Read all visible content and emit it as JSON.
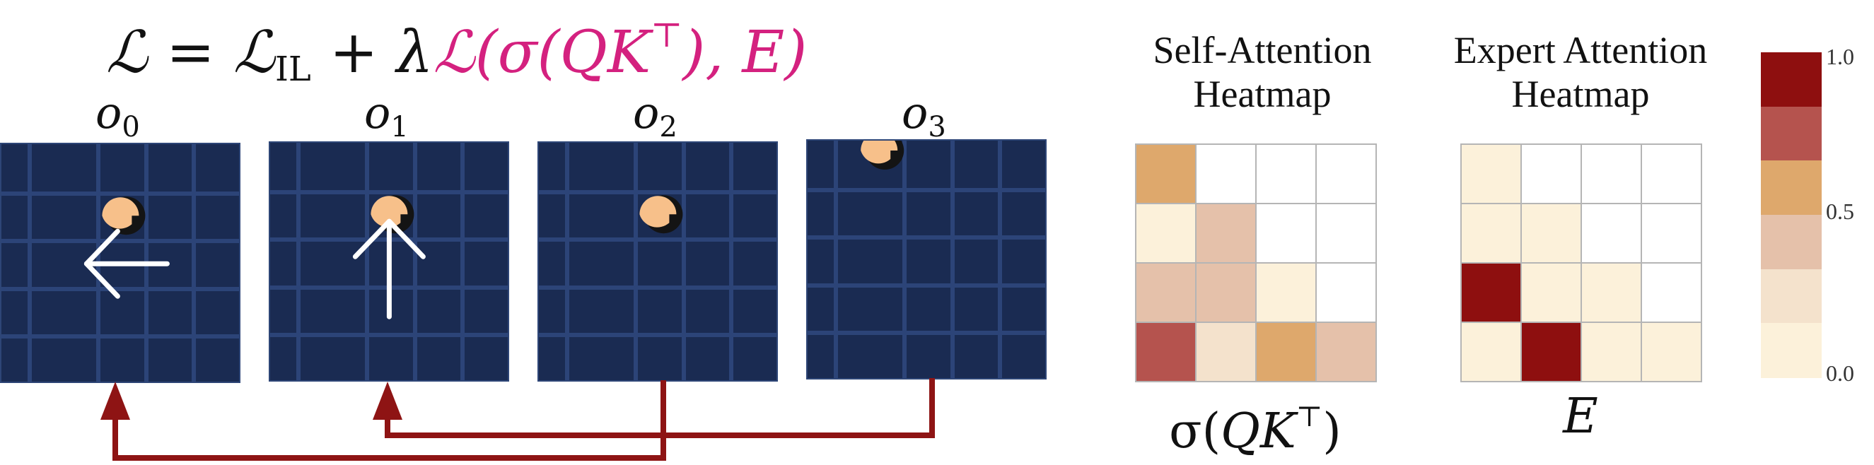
{
  "equation": {
    "lhs": "ℒ",
    "eq": " = ",
    "term1": "ℒ",
    "term1_sub": "IL",
    "plus": " + ",
    "lambda": "λ",
    "loss": "ℒ(σ(QK",
    "loss_sup": "⊤",
    "loss_end": "), E)"
  },
  "observations": [
    {
      "label": "o",
      "sub": "0",
      "agent_cell": [
        2,
        1
      ],
      "arrow": "left"
    },
    {
      "label": "o",
      "sub": "1",
      "agent_cell": [
        2,
        1
      ],
      "arrow": "up"
    },
    {
      "label": "o",
      "sub": "2",
      "agent_cell": [
        2,
        1
      ],
      "arrow": "none"
    },
    {
      "label": "o",
      "sub": "3",
      "agent_cell": [
        1,
        0
      ],
      "arrow": "none"
    }
  ],
  "heatmaps": [
    {
      "title_line1": "Self-Attention",
      "title_line2": "Heatmap",
      "caption_prefix": "σ(",
      "caption_ital": "QK",
      "caption_sup": "⊤",
      "caption_suffix": ")",
      "matrix": [
        [
          0.55,
          0.0,
          0.0,
          0.0
        ],
        [
          0.05,
          0.35,
          0.0,
          0.0
        ],
        [
          0.35,
          0.35,
          0.05,
          0.0
        ],
        [
          0.75,
          0.2,
          0.55,
          0.35
        ]
      ]
    },
    {
      "title_line1": "Expert Attention",
      "title_line2": "Heatmap",
      "caption_ital": "E",
      "matrix": [
        [
          0.05,
          0.0,
          0.0,
          0.0
        ],
        [
          0.05,
          0.05,
          0.0,
          0.0
        ],
        [
          1.0,
          0.05,
          0.05,
          0.0
        ],
        [
          0.05,
          1.0,
          0.05,
          0.05
        ]
      ]
    }
  ],
  "colorbar": {
    "ticks": [
      "1.0",
      "0.5",
      "0.0"
    ],
    "colors": [
      "#8e0f0f",
      "#b5534e",
      "#dea86c",
      "#e5c1aa",
      "#f4e2cc",
      "#fcf1da"
    ]
  },
  "colors": {
    "grid_bg": "#1a2b52",
    "arrow_red": "#8e1414",
    "agent": "#f7c08a",
    "pink": "#d4217f"
  }
}
